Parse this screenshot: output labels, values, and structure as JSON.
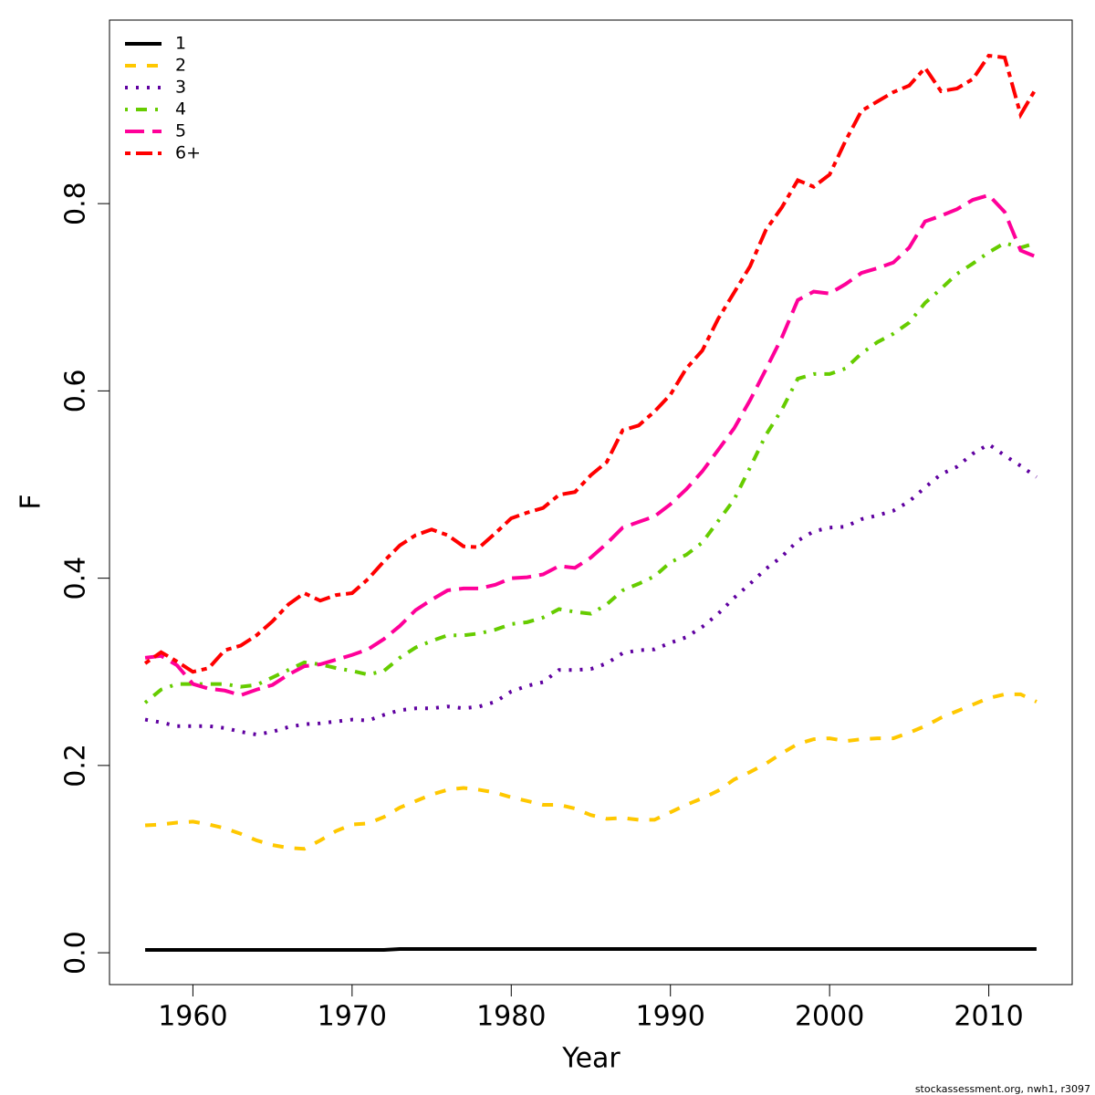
{
  "chart_data": {
    "type": "line",
    "xlabel": "Year",
    "ylabel": "F",
    "footer": "stockassessment.org, nwh1, r3097",
    "x": [
      1957,
      1958,
      1959,
      1960,
      1961,
      1962,
      1963,
      1964,
      1965,
      1966,
      1967,
      1968,
      1969,
      1970,
      1971,
      1972,
      1973,
      1974,
      1975,
      1976,
      1977,
      1978,
      1979,
      1980,
      1981,
      1982,
      1983,
      1984,
      1985,
      1986,
      1987,
      1988,
      1989,
      1990,
      1991,
      1992,
      1993,
      1994,
      1995,
      1996,
      1997,
      1998,
      1999,
      2000,
      2001,
      2002,
      2003,
      2004,
      2005,
      2006,
      2007,
      2008,
      2009,
      2010,
      2011,
      2012,
      2013
    ],
    "xlim": [
      1954.76,
      2015.24
    ],
    "xticks": [
      1960,
      1970,
      1980,
      1990,
      2000,
      2010
    ],
    "ylim": [
      -0.034,
      0.996
    ],
    "yticks": [
      {
        "value": 0,
        "label": "0.0"
      },
      0.2,
      0.4,
      0.6,
      {
        "value": 0.8,
        "label": "0.8"
      }
    ],
    "legend": "topleft",
    "series": [
      {
        "name": "1",
        "color": "#000000",
        "dash": "solid",
        "values": [
          0.003,
          0.003,
          0.003,
          0.003,
          0.003,
          0.003,
          0.003,
          0.003,
          0.003,
          0.003,
          0.003,
          0.003,
          0.003,
          0.003,
          0.003,
          0.003,
          0.004,
          0.004,
          0.004,
          0.004,
          0.004,
          0.004,
          0.004,
          0.004,
          0.004,
          0.004,
          0.004,
          0.004,
          0.004,
          0.004,
          0.004,
          0.004,
          0.004,
          0.004,
          0.004,
          0.004,
          0.004,
          0.004,
          0.004,
          0.004,
          0.004,
          0.004,
          0.004,
          0.004,
          0.004,
          0.004,
          0.004,
          0.004,
          0.004,
          0.004,
          0.004,
          0.004,
          0.004,
          0.004,
          0.004,
          0.004,
          0.004
        ]
      },
      {
        "name": "2",
        "color": "#ffc800",
        "dash": "dashed",
        "values": [
          0.136,
          0.137,
          0.139,
          0.14,
          0.137,
          0.133,
          0.127,
          0.12,
          0.115,
          0.112,
          0.111,
          0.12,
          0.13,
          0.137,
          0.138,
          0.145,
          0.155,
          0.162,
          0.169,
          0.174,
          0.176,
          0.174,
          0.171,
          0.166,
          0.162,
          0.158,
          0.158,
          0.154,
          0.147,
          0.143,
          0.144,
          0.142,
          0.142,
          0.15,
          0.158,
          0.165,
          0.173,
          0.185,
          0.193,
          0.202,
          0.213,
          0.223,
          0.228,
          0.229,
          0.226,
          0.228,
          0.229,
          0.229,
          0.235,
          0.242,
          0.251,
          0.258,
          0.265,
          0.272,
          0.276,
          0.276,
          0.268
        ]
      },
      {
        "name": "3",
        "color": "#5f00a0",
        "dash": "dotted",
        "values": [
          0.249,
          0.246,
          0.242,
          0.242,
          0.242,
          0.24,
          0.236,
          0.233,
          0.236,
          0.241,
          0.244,
          0.245,
          0.247,
          0.249,
          0.248,
          0.254,
          0.259,
          0.261,
          0.261,
          0.263,
          0.261,
          0.263,
          0.268,
          0.279,
          0.285,
          0.289,
          0.302,
          0.302,
          0.303,
          0.309,
          0.32,
          0.323,
          0.324,
          0.331,
          0.337,
          0.348,
          0.362,
          0.379,
          0.394,
          0.41,
          0.423,
          0.44,
          0.45,
          0.454,
          0.455,
          0.463,
          0.467,
          0.472,
          0.482,
          0.497,
          0.511,
          0.519,
          0.533,
          0.543,
          0.531,
          0.52,
          0.508
        ]
      },
      {
        "name": "4",
        "color": "#66cc00",
        "dash": "dotdash",
        "values": [
          0.267,
          0.281,
          0.287,
          0.287,
          0.287,
          0.287,
          0.284,
          0.286,
          0.294,
          0.302,
          0.31,
          0.308,
          0.304,
          0.301,
          0.297,
          0.301,
          0.315,
          0.326,
          0.333,
          0.339,
          0.339,
          0.341,
          0.345,
          0.351,
          0.353,
          0.358,
          0.367,
          0.364,
          0.362,
          0.372,
          0.387,
          0.394,
          0.402,
          0.417,
          0.425,
          0.438,
          0.461,
          0.484,
          0.518,
          0.553,
          0.58,
          0.613,
          0.618,
          0.618,
          0.624,
          0.64,
          0.652,
          0.661,
          0.673,
          0.694,
          0.709,
          0.725,
          0.736,
          0.748,
          0.758,
          0.753,
          0.758
        ]
      },
      {
        "name": "5",
        "color": "#ff0099",
        "dash": "longdash",
        "values": [
          0.315,
          0.317,
          0.307,
          0.287,
          0.282,
          0.28,
          0.275,
          0.281,
          0.286,
          0.297,
          0.306,
          0.308,
          0.313,
          0.318,
          0.324,
          0.335,
          0.349,
          0.366,
          0.377,
          0.387,
          0.389,
          0.389,
          0.393,
          0.4,
          0.401,
          0.404,
          0.413,
          0.411,
          0.422,
          0.437,
          0.454,
          0.46,
          0.466,
          0.479,
          0.495,
          0.514,
          0.537,
          0.56,
          0.59,
          0.623,
          0.657,
          0.697,
          0.706,
          0.704,
          0.714,
          0.726,
          0.731,
          0.737,
          0.753,
          0.781,
          0.787,
          0.794,
          0.804,
          0.809,
          0.791,
          0.75,
          0.743
        ]
      },
      {
        "name": "6+",
        "color": "#ff0000",
        "dash": "twodash",
        "values": [
          0.309,
          0.321,
          0.311,
          0.3,
          0.304,
          0.323,
          0.328,
          0.339,
          0.354,
          0.372,
          0.384,
          0.376,
          0.382,
          0.384,
          0.399,
          0.418,
          0.435,
          0.446,
          0.452,
          0.446,
          0.434,
          0.433,
          0.448,
          0.464,
          0.47,
          0.475,
          0.489,
          0.492,
          0.51,
          0.524,
          0.558,
          0.563,
          0.578,
          0.596,
          0.624,
          0.643,
          0.677,
          0.705,
          0.733,
          0.772,
          0.796,
          0.825,
          0.818,
          0.831,
          0.867,
          0.899,
          0.909,
          0.919,
          0.926,
          0.945,
          0.92,
          0.923,
          0.933,
          0.958,
          0.956,
          0.895,
          0.924
        ]
      }
    ]
  }
}
